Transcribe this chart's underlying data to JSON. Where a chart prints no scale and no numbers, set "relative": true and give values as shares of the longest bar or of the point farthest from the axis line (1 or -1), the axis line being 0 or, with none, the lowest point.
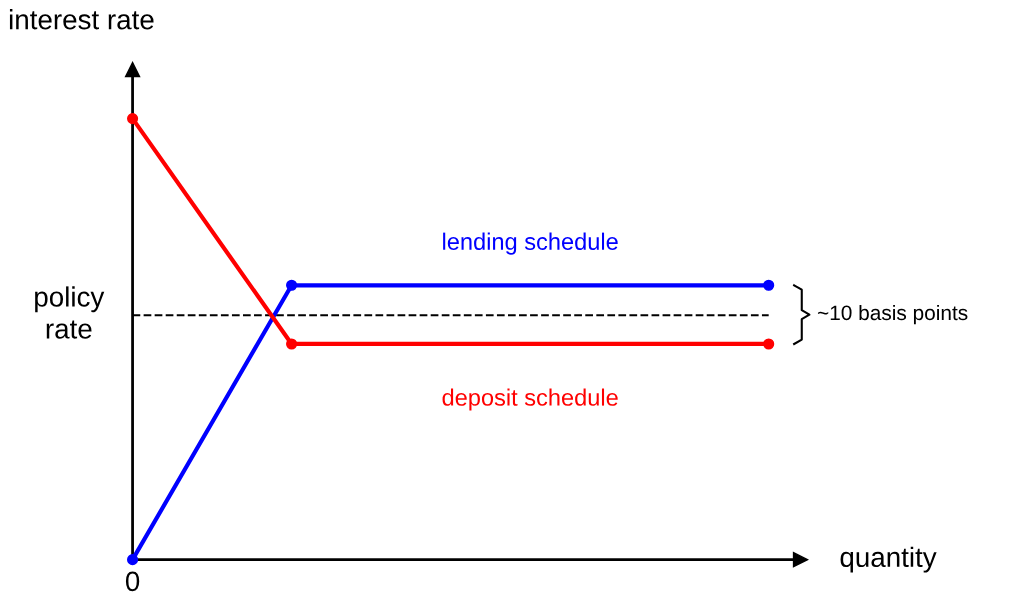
{
  "chart_data": {
    "type": "line",
    "relative": true,
    "xlabel": "quantity",
    "ylabel": "interest rate",
    "marker": "circle",
    "line_style": "solid",
    "categories": [
      null,
      null,
      null,
      null,
      null
    ],
    "series": [
      {
        "name": "lending schedule",
        "color": "#0000ff",
        "values": [
          0,
          0.622,
          0.622,
          0.622,
          0.622
        ]
      },
      {
        "name": "deposit schedule",
        "color": "#ff0000",
        "values": [
          1,
          0.489,
          0.489,
          0.489,
          0.489
        ]
      }
    ],
    "ref_lines": [
      {
        "axis": "y",
        "value": 0.554,
        "label": "policy rate",
        "color": "#000000",
        "line_style": "dashed"
      }
    ],
    "annotations": [
      "~10 basis points",
      "0"
    ]
  }
}
